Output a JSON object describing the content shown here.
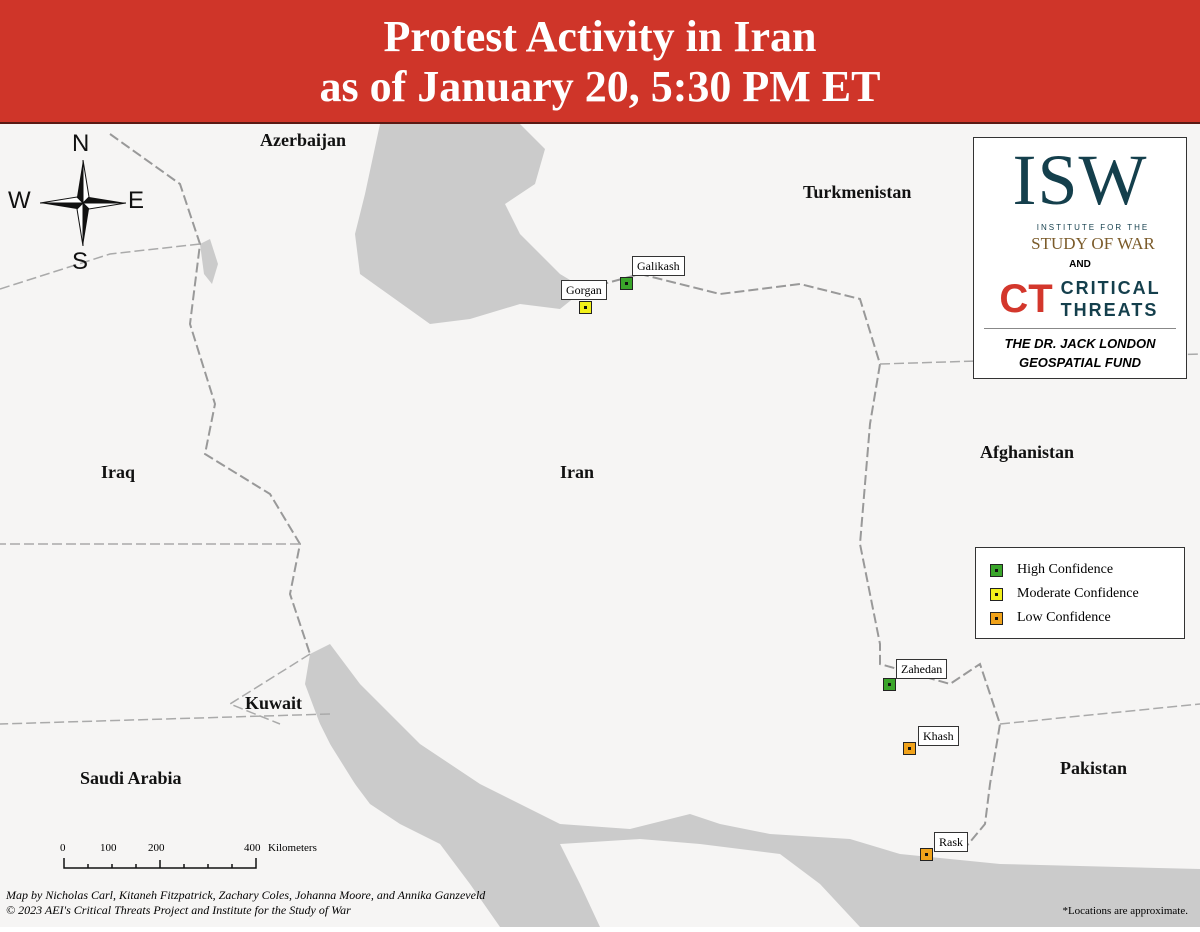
{
  "title": {
    "line1": "Protest Activity in Iran",
    "line2": "as of January 20, 5:30 PM ET"
  },
  "compass": {
    "n": "N",
    "s": "S",
    "e": "E",
    "w": "W"
  },
  "countries": {
    "azerbaijan": "Azerbaijan",
    "turkmenistan": "Turkmenistan",
    "iraq": "Iraq",
    "iran": "Iran",
    "afghanistan": "Afghanistan",
    "kuwait": "Kuwait",
    "saudi_arabia": "Saudi Arabia",
    "pakistan": "Pakistan"
  },
  "logo": {
    "isw": "ISW",
    "institute": "INSTITUTE FOR THE",
    "study_of_war": "STUDY OF WAR",
    "and": "AND",
    "ct_mark": "CT",
    "critical": "CRITICAL",
    "threats": "THREATS",
    "fund_line1": "THE DR. JACK LONDON",
    "fund_line2": "GEOSPATIAL FUND"
  },
  "legend": {
    "items": [
      {
        "label": "High Confidence",
        "color": "#3aa52a"
      },
      {
        "label": "Moderate Confidence",
        "color": "#f2f01a"
      },
      {
        "label": "Low Confidence",
        "color": "#f0a21a"
      }
    ]
  },
  "locations": [
    {
      "name": "Galikash",
      "confidence": "High Confidence"
    },
    {
      "name": "Gorgan",
      "confidence": "Moderate Confidence"
    },
    {
      "name": "Zahedan",
      "confidence": "High Confidence"
    },
    {
      "name": "Khash",
      "confidence": "Low Confidence"
    },
    {
      "name": "Rask",
      "confidence": "Low Confidence"
    }
  ],
  "scale_bar": {
    "ticks": [
      "0",
      "100",
      "200",
      "400"
    ],
    "unit": "Kilometers"
  },
  "credits": {
    "line1": "Map by Nicholas Carl, Kitaneh Fitzpatrick, Zachary Coles, Johanna Moore, and Annika Ganzeveld",
    "line2": "© 2023 AEI's Critical Threats Project and Institute for the Study of War"
  },
  "note": "*Locations are approximate."
}
